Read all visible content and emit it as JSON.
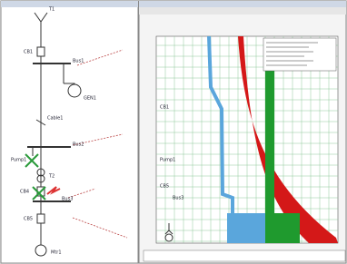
{
  "diagram": {
    "nodes": [
      {
        "label": "T1"
      },
      {
        "label": "CB1"
      },
      {
        "label": "Bus1"
      },
      {
        "label": "GEN1"
      },
      {
        "label": "Cable1"
      },
      {
        "label": "Bus2"
      },
      {
        "label": "Pump1"
      },
      {
        "label": "T2"
      },
      {
        "label": "CB4"
      },
      {
        "label": "Bus3"
      },
      {
        "label": "CB5"
      },
      {
        "label": "Mtr1"
      }
    ]
  },
  "plot": {
    "labels": [
      "CB1",
      "Pump1",
      "CB5",
      "Bus3"
    ]
  }
}
